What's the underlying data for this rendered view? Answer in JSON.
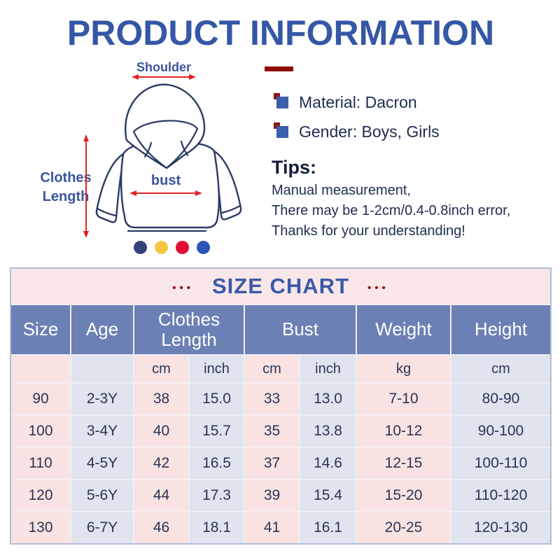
{
  "header": {
    "title": "PRODUCT INFORMATION"
  },
  "measure_diagram": {
    "shoulder_label": "Shoulder",
    "clothes_length_label": "Clothes Length",
    "bust_label": "bust",
    "color_dots": [
      "#36437d",
      "#f6c643",
      "#e50d33",
      "#2d54b9"
    ]
  },
  "product_details": {
    "items": [
      "Material: Dacron",
      "Gender: Boys, Girls"
    ],
    "tips_title": "Tips:",
    "tips_lines": [
      "Manual measurement,",
      "There may be 1-2cm/0.4-0.8inch error,",
      "Thanks for your understanding!"
    ]
  },
  "size_chart": {
    "title": "SIZE CHART",
    "decoration_dots": "•••",
    "column_headers": [
      "Size",
      "Age",
      "Clothes Length",
      "Bust",
      "Weight",
      "Height"
    ],
    "unit_cells": [
      "",
      "",
      "cm",
      "inch",
      "cm",
      "inch",
      "kg",
      "cm"
    ],
    "rows": [
      [
        "90",
        "2-3Y",
        "38",
        "15.0",
        "33",
        "13.0",
        "7-10",
        "80-90"
      ],
      [
        "100",
        "3-4Y",
        "40",
        "15.7",
        "35",
        "13.8",
        "10-12",
        "90-100"
      ],
      [
        "110",
        "4-5Y",
        "42",
        "16.5",
        "37",
        "14.6",
        "12-15",
        "100-110"
      ],
      [
        "120",
        "5-6Y",
        "44",
        "17.3",
        "39",
        "15.4",
        "15-20",
        "110-120"
      ],
      [
        "130",
        "6-7Y",
        "46",
        "18.1",
        "41",
        "16.1",
        "20-25",
        "120-130"
      ]
    ]
  },
  "colors": {
    "title_blue": "#3457a6",
    "dark_red": "#8e0b0b",
    "navy_text": "#1e2c50",
    "drawing_outline": "#2b3a66",
    "arrow_red": "#e02424",
    "table_header_bg": "#6b80b4",
    "pink_cell": "#f8e3e2",
    "blue_cell": "#dfe4ef",
    "band_pink": "#f8e6e9",
    "border_lavender": "#b6bdda"
  }
}
